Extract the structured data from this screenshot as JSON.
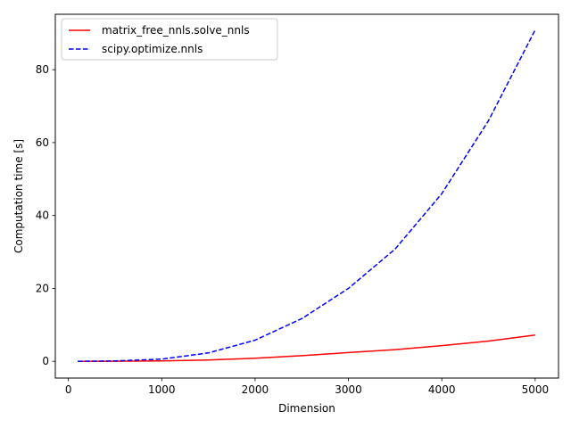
{
  "chart_data": {
    "type": "line",
    "xlabel": "Dimension",
    "ylabel": "Computation time [s]",
    "xlim": [
      -140,
      5250
    ],
    "ylim": [
      -4.6,
      95.2
    ],
    "xticks": [
      0,
      1000,
      2000,
      3000,
      4000,
      5000
    ],
    "xtick_labels": [
      "0",
      "1000",
      "2000",
      "3000",
      "4000",
      "5000"
    ],
    "yticks": [
      0,
      20,
      40,
      60,
      80
    ],
    "ytick_labels": [
      "0",
      "20",
      "40",
      "60",
      "80"
    ],
    "grid": false,
    "legend_position": "top-left",
    "series": [
      {
        "name": "matrix_free_nnls.solve_nnls",
        "color": "#ff0000",
        "style": "solid",
        "x": [
          100,
          500,
          1000,
          1500,
          2000,
          2500,
          3000,
          3500,
          4000,
          4500,
          5000
        ],
        "y": [
          0.0,
          0.02,
          0.1,
          0.35,
          0.85,
          1.55,
          2.4,
          3.2,
          4.3,
          5.55,
          7.2
        ]
      },
      {
        "name": "scipy.optimize.nnls",
        "color": "#0000ff",
        "style": "dashed",
        "x": [
          100,
          500,
          1000,
          1500,
          2000,
          2500,
          3000,
          3500,
          4000,
          4500,
          5000
        ],
        "y": [
          0.0,
          0.1,
          0.6,
          2.3,
          5.8,
          11.7,
          20.0,
          30.8,
          46.0,
          66.0,
          90.9
        ]
      }
    ]
  }
}
